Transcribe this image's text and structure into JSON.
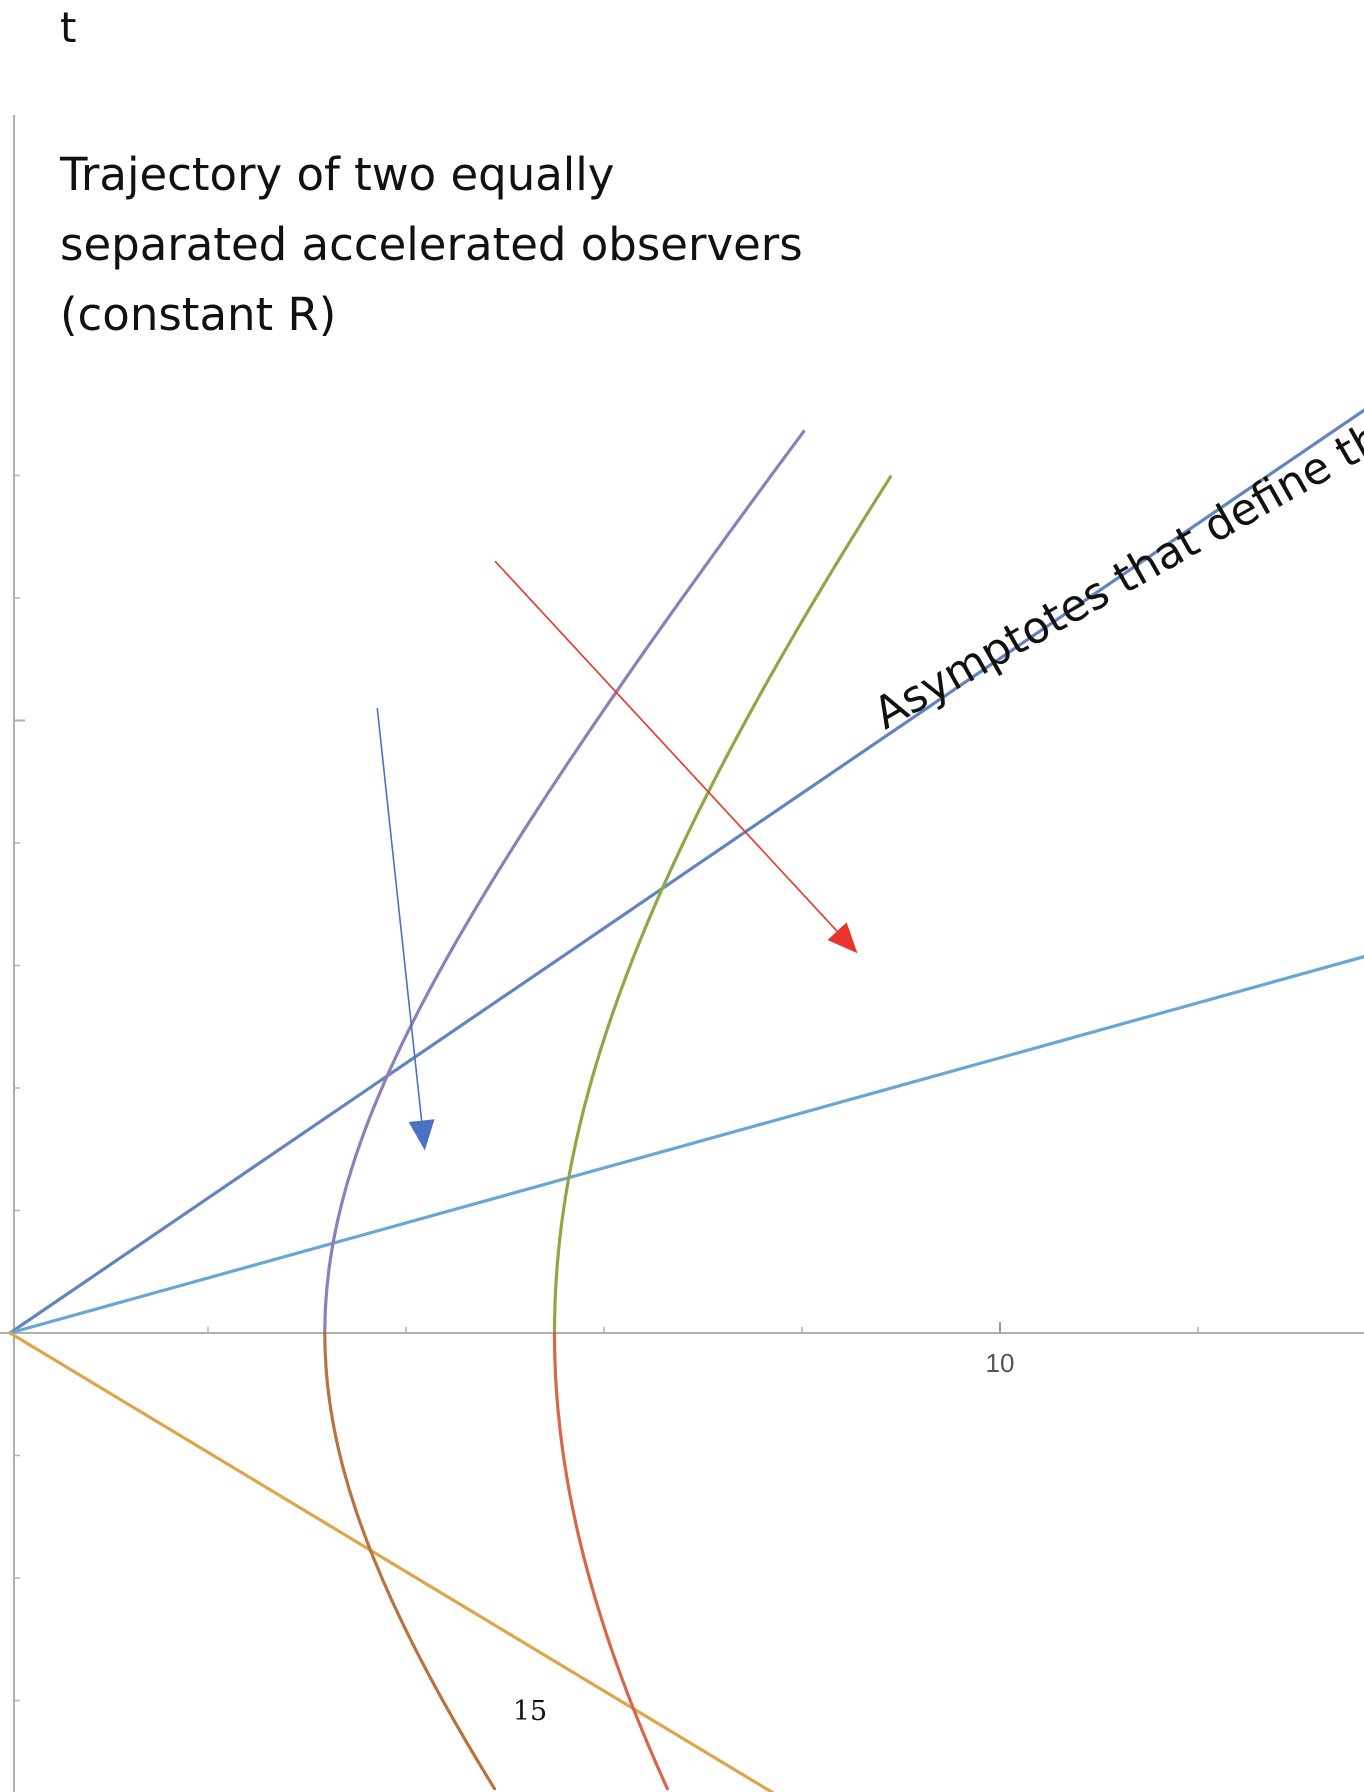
{
  "chart_data": {
    "type": "line",
    "title": "",
    "xlabel": "",
    "ylabel": "t",
    "xlim": [
      0,
      13.8
    ],
    "ylim": [
      -4.6,
      7.4
    ],
    "grid": false,
    "legend": "none",
    "x_ticks": [
      {
        "value": 10,
        "label": "10"
      }
    ],
    "series": [
      {
        "role": "asymptote",
        "color": "#6384c0",
        "points": [
          [
            0,
            0
          ],
          [
            13.8,
            7.6
          ]
        ]
      },
      {
        "role": "line",
        "color": "#6aa6d4",
        "points": [
          [
            0,
            0
          ],
          [
            13.8,
            3.1
          ]
        ]
      },
      {
        "role": "asymptote-lower",
        "color": "#dea54b",
        "points": [
          [
            0,
            0
          ],
          [
            7.7,
            -3.75
          ]
        ]
      },
      {
        "role": "hyperbola",
        "color": "#8e7fbb",
        "kind": "hyperbola",
        "x_min": 3.18,
        "t_range": [
          0,
          7.36
        ]
      },
      {
        "role": "hyperbola",
        "color": "#8ea845",
        "kind": "hyperbola",
        "x_min": 5.5,
        "t_range": [
          0,
          6.99
        ]
      },
      {
        "role": "hyperbola-lower",
        "color": "#b8733e",
        "kind": "hyperbola",
        "x_min": 3.18,
        "t_range": [
          -3.72,
          0
        ]
      },
      {
        "role": "hyperbola-lower",
        "color": "#d8674a",
        "kind": "hyperbola",
        "x_min": 5.5,
        "t_range": [
          -3.72,
          0
        ]
      }
    ],
    "annotations": [
      {
        "text_lines": [
          "Trajectory of two equally",
          "separated accelerated observers",
          "(constant R)"
        ]
      },
      {
        "text": "Asymptotes that define th"
      }
    ],
    "arrows": [
      {
        "color": "#4a72c4",
        "from": [
          3.71,
          5.1
        ],
        "to": [
          4.19,
          1.49
        ]
      },
      {
        "color": "#e8342a",
        "from": [
          4.9,
          6.3
        ],
        "to": [
          8.56,
          3.1
        ]
      }
    ]
  },
  "page_number": "15"
}
